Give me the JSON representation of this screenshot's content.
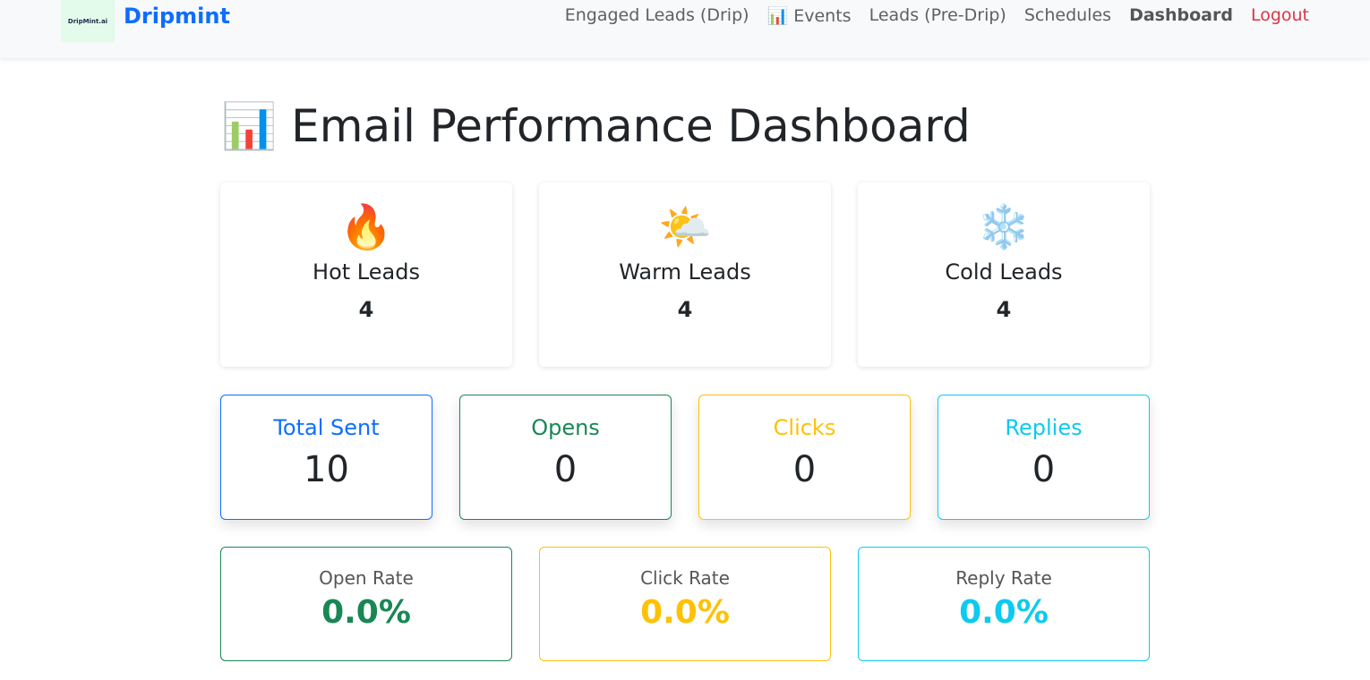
{
  "nav": {
    "logo_text": "DripMint.ai",
    "brand": "Dripmint",
    "links": [
      "Engaged Leads (Drip)",
      "📊 Events",
      "Leads (Pre-Drip)",
      "Schedules",
      "Dashboard",
      "Logout"
    ]
  },
  "title": "📊 Email Performance Dashboard",
  "leads": [
    {
      "icon": "🔥",
      "label": "Hot Leads",
      "value": "4"
    },
    {
      "icon": "🌤️",
      "label": "Warm Leads",
      "value": "4"
    },
    {
      "icon": "❄️",
      "label": "Cold Leads",
      "value": "4"
    }
  ],
  "stats": [
    {
      "label": "Total Sent",
      "value": "10",
      "color": "#0d6efd"
    },
    {
      "label": "Opens",
      "value": "0",
      "color": "#198754"
    },
    {
      "label": "Clicks",
      "value": "0",
      "color": "#ffc107"
    },
    {
      "label": "Replies",
      "value": "0",
      "color": "#0dcaf0"
    }
  ],
  "rates": [
    {
      "label": "Open Rate",
      "value": "0.0%",
      "color": "#198754"
    },
    {
      "label": "Click Rate",
      "value": "0.0%",
      "color": "#ffc107"
    },
    {
      "label": "Reply Rate",
      "value": "0.0%",
      "color": "#0dcaf0"
    }
  ]
}
